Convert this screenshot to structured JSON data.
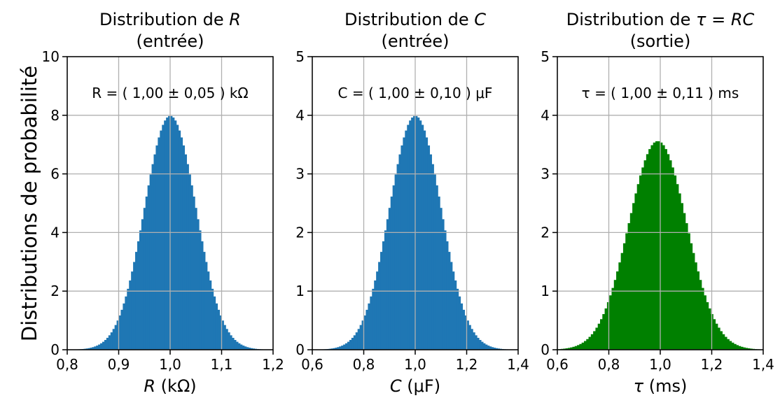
{
  "figure": {
    "ylabel": "Distributions de probabilité"
  },
  "chart_data": [
    {
      "type": "histogram",
      "title_line1": "Distribution de ",
      "title_symbol": "R",
      "title_line2": "(entrée)",
      "annotation": "R = ( 1,00 ± 0,05 ) kΩ",
      "xlabel_symbol": "R",
      "xlabel_unit": " (kΩ)",
      "xlim": [
        0.8,
        1.2
      ],
      "ylim": [
        0,
        10
      ],
      "xticks": [
        0.8,
        0.9,
        1.0,
        1.1,
        1.2
      ],
      "xtick_labels": [
        "0,8",
        "0,9",
        "1,0",
        "1,1",
        "1,2"
      ],
      "yticks": [
        0,
        2,
        4,
        6,
        8,
        10
      ],
      "ytick_labels": [
        "0",
        "2",
        "4",
        "6",
        "8",
        "10"
      ],
      "distribution": {
        "mean": 1.0,
        "std": 0.05,
        "peak": 7.98
      },
      "color": "#1f77b4",
      "grid": true
    },
    {
      "type": "histogram",
      "title_line1": "Distribution de ",
      "title_symbol": "C",
      "title_line2": "(entrée)",
      "annotation": "C = ( 1,00 ± 0,10 ) μF",
      "xlabel_symbol": "C",
      "xlabel_unit": " (μF)",
      "xlim": [
        0.6,
        1.4
      ],
      "ylim": [
        0,
        5
      ],
      "xticks": [
        0.6,
        0.8,
        1.0,
        1.2,
        1.4
      ],
      "xtick_labels": [
        "0,6",
        "0,8",
        "1,0",
        "1,2",
        "1,4"
      ],
      "yticks": [
        0,
        1,
        2,
        3,
        4,
        5
      ],
      "ytick_labels": [
        "0",
        "1",
        "2",
        "3",
        "4",
        "5"
      ],
      "distribution": {
        "mean": 1.0,
        "std": 0.1,
        "peak": 3.99
      },
      "color": "#1f77b4",
      "grid": true
    },
    {
      "type": "histogram",
      "title_line1": "Distribution de ",
      "title_symbol": "τ = RC",
      "title_line2": "(sortie)",
      "annotation": "τ = ( 1,00 ± 0,11 ) ms",
      "xlabel_symbol": "τ",
      "xlabel_unit": " (ms)",
      "xlim": [
        0.6,
        1.4
      ],
      "ylim": [
        0,
        5
      ],
      "xticks": [
        0.6,
        0.8,
        1.0,
        1.2,
        1.4
      ],
      "xtick_labels": [
        "0,6",
        "0,8",
        "1,0",
        "1,2",
        "1,4"
      ],
      "yticks": [
        0,
        1,
        2,
        3,
        4,
        5
      ],
      "ytick_labels": [
        "0",
        "1",
        "2",
        "3",
        "4",
        "5"
      ],
      "distribution": {
        "mean": 0.99,
        "std": 0.112,
        "peak": 3.56
      },
      "color": "#008000",
      "grid": true
    }
  ]
}
